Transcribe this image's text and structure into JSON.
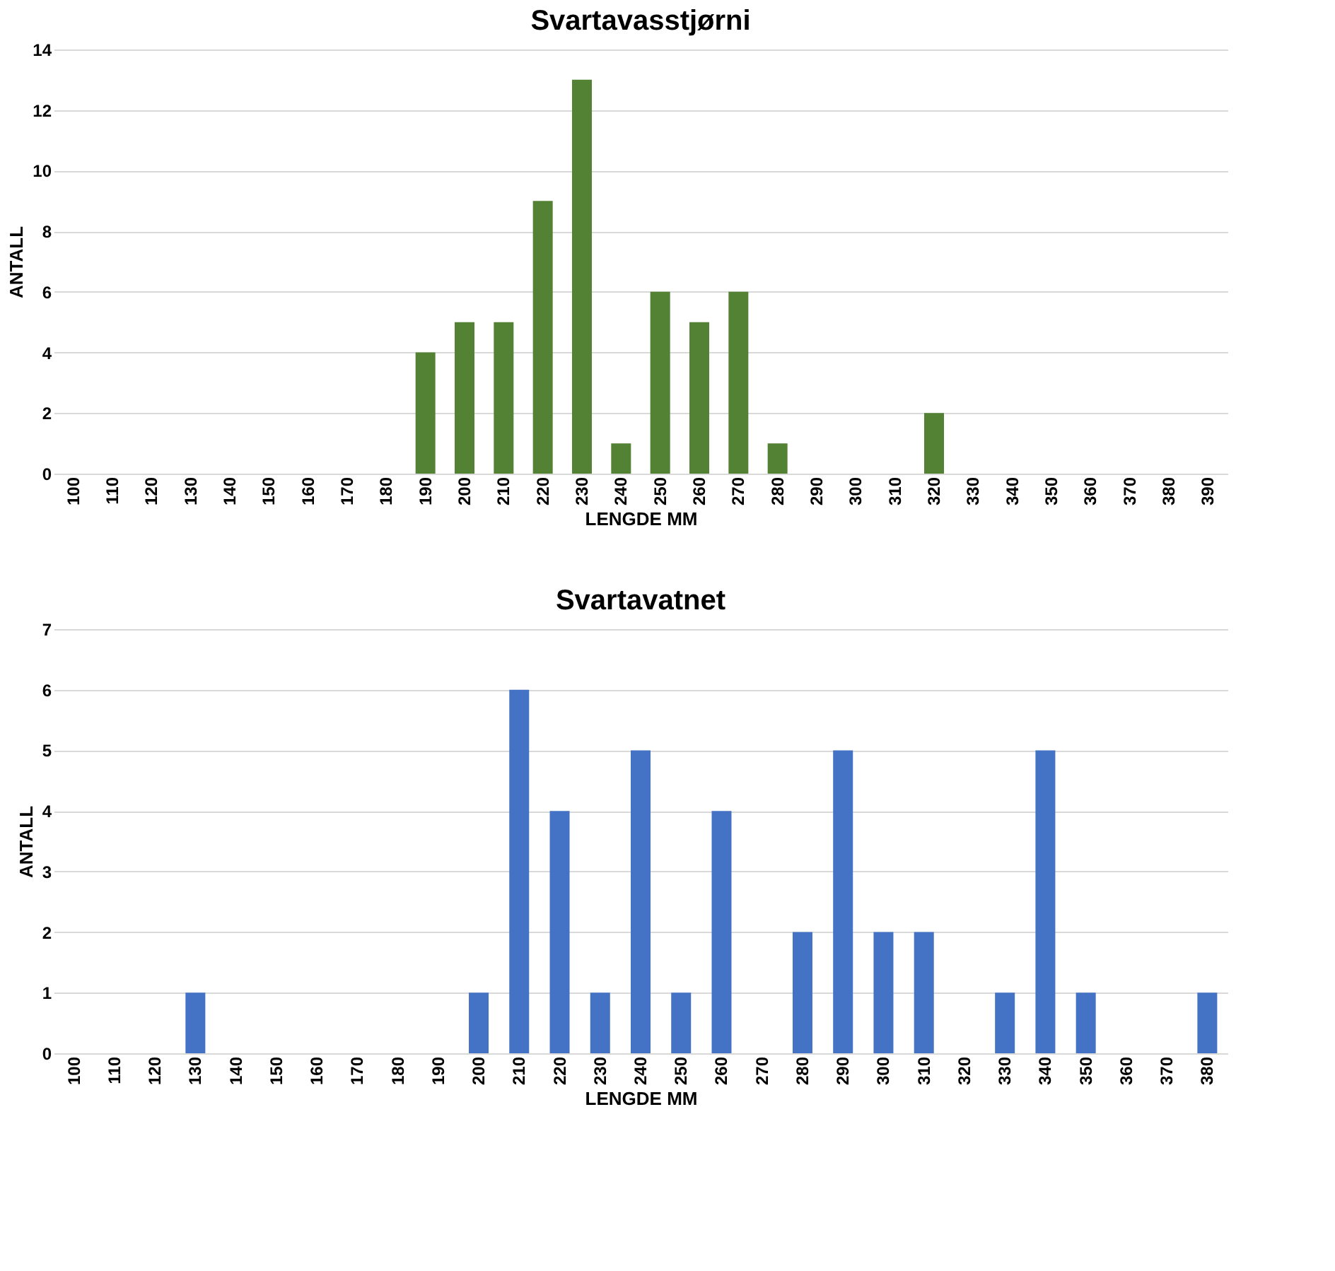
{
  "chart_data": [
    {
      "type": "bar",
      "title": "Svartavasstjørni",
      "xlabel": "LENGDE MM",
      "ylabel": "ANTALL",
      "categories": [
        "100",
        "110",
        "120",
        "130",
        "140",
        "150",
        "160",
        "170",
        "180",
        "190",
        "200",
        "210",
        "220",
        "230",
        "240",
        "250",
        "260",
        "270",
        "280",
        "290",
        "300",
        "310",
        "320",
        "330",
        "340",
        "350",
        "360",
        "370",
        "380",
        "390"
      ],
      "series": [
        {
          "color": "#548235",
          "values": [
            0,
            0,
            0,
            0,
            0,
            0,
            0,
            0,
            0,
            4,
            5,
            5,
            9,
            13,
            1,
            6,
            5,
            6,
            1,
            0,
            0,
            0,
            2,
            0,
            0,
            0,
            0,
            0,
            0,
            0
          ]
        }
      ],
      "ylim": [
        0,
        14
      ],
      "yticks": [
        0,
        2,
        4,
        6,
        8,
        10,
        12,
        14
      ],
      "grid": "y"
    },
    {
      "type": "bar",
      "title": "Svartavatnet",
      "xlabel": "LENGDE MM",
      "ylabel": "ANTALL",
      "categories": [
        "100",
        "110",
        "120",
        "130",
        "140",
        "150",
        "160",
        "170",
        "180",
        "190",
        "200",
        "210",
        "220",
        "230",
        "240",
        "250",
        "260",
        "270",
        "280",
        "290",
        "300",
        "310",
        "320",
        "330",
        "340",
        "350",
        "360",
        "370",
        "380"
      ],
      "series": [
        {
          "color": "#4472c4",
          "values": [
            0,
            0,
            0,
            1,
            0,
            0,
            0,
            0,
            0,
            0,
            1,
            6,
            4,
            1,
            5,
            1,
            4,
            0,
            2,
            5,
            2,
            2,
            0,
            1,
            5,
            1,
            0,
            0,
            1
          ]
        }
      ],
      "ylim": [
        0,
        7
      ],
      "yticks": [
        0,
        1,
        2,
        3,
        4,
        5,
        6,
        7
      ],
      "grid": "y"
    }
  ]
}
